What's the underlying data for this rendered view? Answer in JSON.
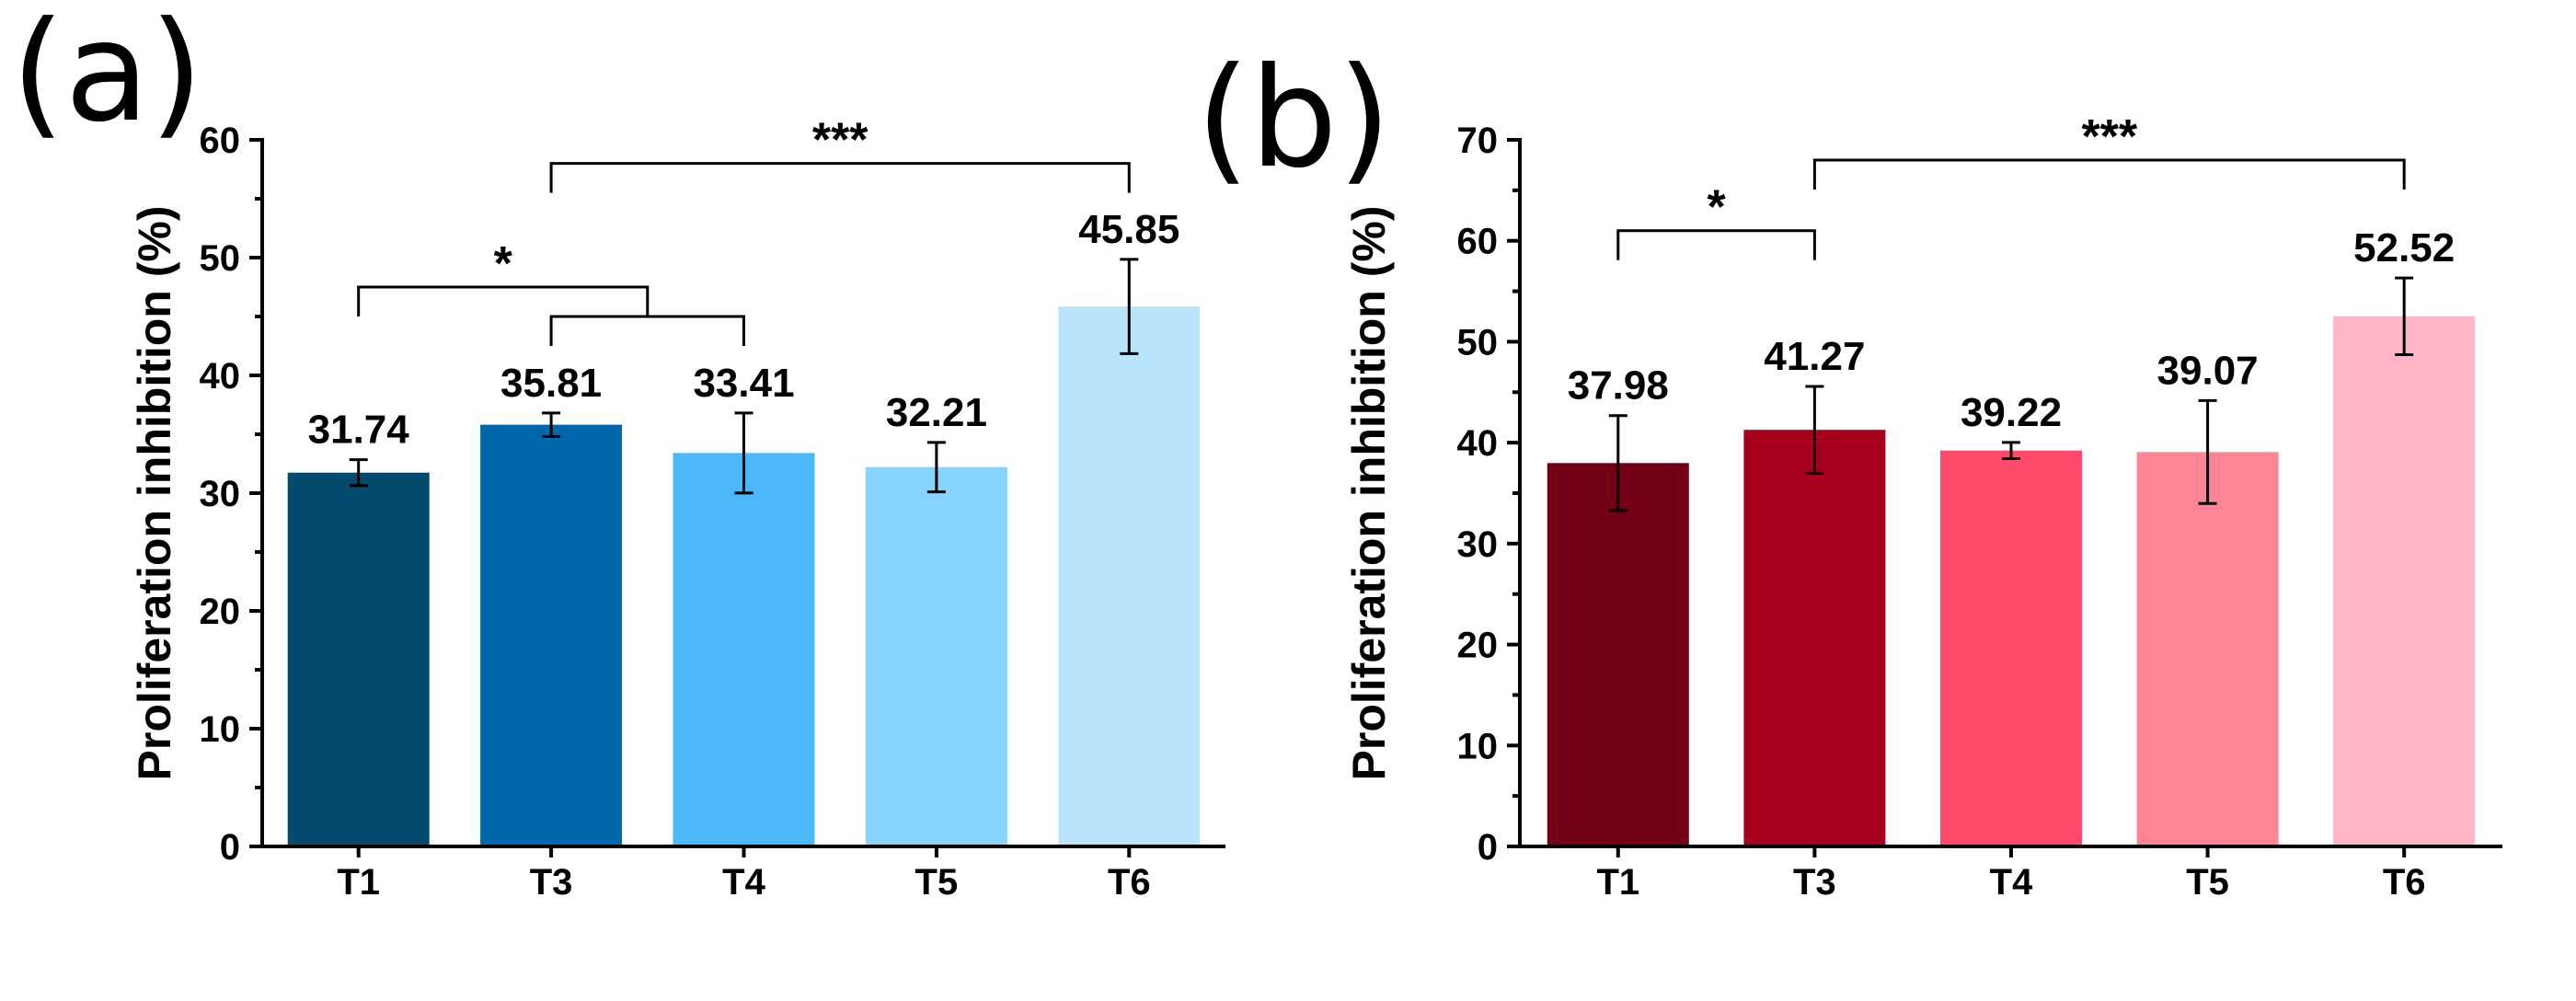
{
  "chart_data": [
    {
      "type": "bar",
      "panel_label": "(a)",
      "categories": [
        "T1",
        "T3",
        "T4",
        "T5",
        "T6"
      ],
      "values": [
        31.74,
        35.81,
        33.41,
        32.21,
        45.85
      ],
      "value_labels": [
        "31.74",
        "35.81",
        "33.41",
        "32.21",
        "45.85"
      ],
      "errors": [
        1.1,
        1.0,
        3.4,
        2.1,
        4.0
      ],
      "colors": [
        "#024A6E",
        "#0068AA",
        "#4BB9F8",
        "#86D3FC",
        "#B8E5FC"
      ],
      "ylabel": "Proliferation inhibition (%)",
      "xlabel": "",
      "ylim": [
        0,
        60
      ],
      "yticks": [
        0,
        10,
        20,
        30,
        40,
        50,
        60
      ],
      "significance": [
        {
          "kind": "nested",
          "from": "T1",
          "to_pair": [
            "T3",
            "T4"
          ],
          "level": 47.5,
          "inner_level": 45.0,
          "label": "*"
        },
        {
          "kind": "pair",
          "from": "T3",
          "to": "T6",
          "level": 58.0,
          "label": "***"
        }
      ]
    },
    {
      "type": "bar",
      "panel_label": "(b)",
      "categories": [
        "T1",
        "T3",
        "T4",
        "T5",
        "T6"
      ],
      "values": [
        37.98,
        41.27,
        39.22,
        39.07,
        52.52
      ],
      "value_labels": [
        "37.98",
        "41.27",
        "39.22",
        "39.07",
        "52.52"
      ],
      "errors": [
        4.7,
        4.3,
        0.8,
        5.1,
        3.8
      ],
      "colors": [
        "#730015",
        "#A6001E",
        "#FF4A6B",
        "#FF8595",
        "#FFB5C5"
      ],
      "ylabel": "Proliferation inhibition (%)",
      "xlabel": "",
      "ylim": [
        0,
        70
      ],
      "yticks": [
        0,
        10,
        20,
        30,
        40,
        50,
        60,
        70
      ],
      "significance": [
        {
          "kind": "pair",
          "from": "T1",
          "to": "T3",
          "level": 61.0,
          "label": "*"
        },
        {
          "kind": "pair",
          "from": "T3",
          "to": "T6",
          "level": 68.0,
          "label": "***"
        }
      ]
    }
  ]
}
